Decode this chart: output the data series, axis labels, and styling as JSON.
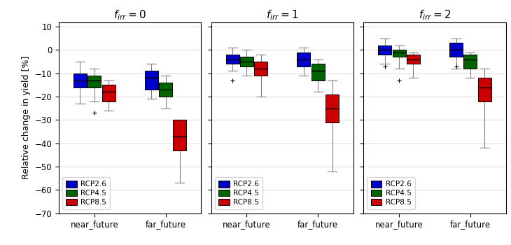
{
  "panels": [
    {
      "title": "$f_{irr} = 0$",
      "near_future": {
        "RCP2.6": {
          "q1": -16,
          "median": -13,
          "q3": -10,
          "whisker_low": -23,
          "whisker_high": -5,
          "fliers": []
        },
        "RCP4.5": {
          "q1": -16,
          "median": -13,
          "q3": -11,
          "whisker_low": -22,
          "whisker_high": -8,
          "fliers": [
            -27
          ]
        },
        "RCP8.5": {
          "q1": -22,
          "median": -18,
          "q3": -15,
          "whisker_low": -26,
          "whisker_high": -13,
          "fliers": []
        }
      },
      "far_future": {
        "RCP2.6": {
          "q1": -17,
          "median": -12,
          "q3": -9,
          "whisker_low": -21,
          "whisker_high": -6,
          "fliers": []
        },
        "RCP4.5": {
          "q1": -20,
          "median": -17,
          "q3": -14,
          "whisker_low": -25,
          "whisker_high": -11,
          "fliers": []
        },
        "RCP8.5": {
          "q1": -43,
          "median": -37,
          "q3": -30,
          "whisker_low": -57,
          "whisker_high": -30,
          "fliers": []
        }
      }
    },
    {
      "title": "$f_{irr} = 1$",
      "near_future": {
        "RCP2.6": {
          "q1": -6,
          "median": -4,
          "q3": -2,
          "whisker_low": -9,
          "whisker_high": 1,
          "fliers": [
            -13
          ]
        },
        "RCP4.5": {
          "q1": -7,
          "median": -5,
          "q3": -3,
          "whisker_low": -11,
          "whisker_high": 0,
          "fliers": []
        },
        "RCP8.5": {
          "q1": -11,
          "median": -8,
          "q3": -5,
          "whisker_low": -20,
          "whisker_high": -2,
          "fliers": []
        }
      },
      "far_future": {
        "RCP2.6": {
          "q1": -7,
          "median": -4,
          "q3": -1,
          "whisker_low": -11,
          "whisker_high": 1,
          "fliers": []
        },
        "RCP4.5": {
          "q1": -13,
          "median": -9,
          "q3": -6,
          "whisker_low": -18,
          "whisker_high": -4,
          "fliers": []
        },
        "RCP8.5": {
          "q1": -31,
          "median": -25,
          "q3": -19,
          "whisker_low": -52,
          "whisker_high": -13,
          "fliers": []
        }
      }
    },
    {
      "title": "$f_{irr} = 2$",
      "near_future": {
        "RCP2.6": {
          "q1": -2,
          "median": 0,
          "q3": 2,
          "whisker_low": -6,
          "whisker_high": 5,
          "fliers": [
            -7
          ]
        },
        "RCP4.5": {
          "q1": -3,
          "median": -1,
          "q3": 0,
          "whisker_low": -8,
          "whisker_high": 2,
          "fliers": [
            -13
          ]
        },
        "RCP8.5": {
          "q1": -6,
          "median": -4,
          "q3": -2,
          "whisker_low": -12,
          "whisker_high": -1,
          "fliers": []
        }
      },
      "far_future": {
        "RCP2.6": {
          "q1": -3,
          "median": 0,
          "q3": 3,
          "whisker_low": -8,
          "whisker_high": 5,
          "fliers": [
            -7
          ]
        },
        "RCP4.5": {
          "q1": -8,
          "median": -4,
          "q3": -2,
          "whisker_low": -12,
          "whisker_high": -1,
          "fliers": []
        },
        "RCP8.5": {
          "q1": -22,
          "median": -16,
          "q3": -12,
          "whisker_low": -42,
          "whisker_high": -8,
          "fliers": []
        }
      }
    }
  ],
  "colors": {
    "RCP2.6": "#0000cc",
    "RCP4.5": "#006400",
    "RCP8.5": "#cc0000"
  },
  "ylabel": "Relative change in yield [%]",
  "ylim": [
    -70,
    12
  ],
  "yticks": [
    10,
    0,
    -10,
    -20,
    -30,
    -40,
    -50,
    -60,
    -70
  ],
  "xtick_labels": [
    "near_future",
    "far_future"
  ],
  "legend_labels": [
    "RCP2.6",
    "RCP4.5",
    "RCP8.5"
  ],
  "box_width": 0.13,
  "group_centers": [
    0.35,
    1.05
  ],
  "offsets": [
    -0.14,
    0,
    0.14
  ]
}
